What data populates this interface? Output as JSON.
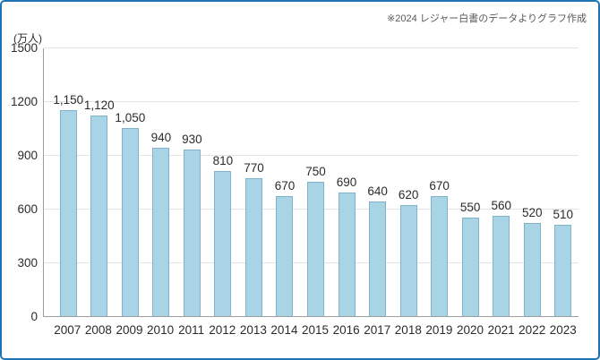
{
  "page": {
    "annotation": "※2024 レジャー白書のデータよりグラフ作成"
  },
  "chart_data": {
    "type": "bar",
    "title": "",
    "unit_label": "(万人)",
    "categories": [
      "2007",
      "2008",
      "2009",
      "2010",
      "2011",
      "2012",
      "2013",
      "2014",
      "2015",
      "2016",
      "2017",
      "2018",
      "2019",
      "2020",
      "2021",
      "2022",
      "2023"
    ],
    "values": [
      1150,
      1120,
      1050,
      940,
      930,
      810,
      770,
      670,
      750,
      690,
      640,
      620,
      670,
      550,
      560,
      520,
      510
    ],
    "value_labels": [
      "1,150",
      "1,120",
      "1,050",
      "940",
      "930",
      "810",
      "770",
      "670",
      "750",
      "690",
      "640",
      "620",
      "670",
      "550",
      "560",
      "520",
      "510"
    ],
    "xlabel": "",
    "ylabel": "(万人)",
    "ylim": [
      0,
      1500
    ],
    "yticks": [
      0,
      300,
      600,
      900,
      1200,
      1500
    ],
    "grid": true,
    "legend": "none",
    "colors": {
      "frame_border": "#1E74B2",
      "bar_fill": "#A9D4E5",
      "bar_border": "#7EB3C9",
      "grid_line": "#E4E4E4",
      "axis_line": "#9E9E9E",
      "text": "#2B2B2B",
      "annotation_text": "#595959"
    }
  }
}
